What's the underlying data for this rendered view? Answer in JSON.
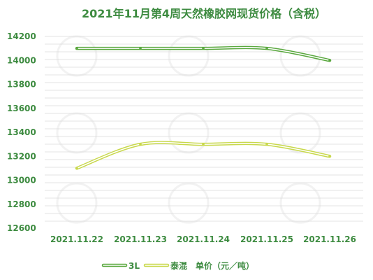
{
  "chart_data": {
    "type": "line",
    "title": "2021年11月第4周天然橡胶网现货价格（含税）",
    "categories": [
      "2021.11.22",
      "2021.11.23",
      "2021.11.24",
      "2021.11.25",
      "2021.11.26"
    ],
    "ylim": [
      12600,
      14200
    ],
    "yticks": [
      12600,
      12800,
      13000,
      13200,
      13400,
      13600,
      13800,
      14000,
      14200
    ],
    "grid": true,
    "legend_position": "bottom",
    "series": [
      {
        "name": "3L",
        "values": [
          14100,
          14100,
          14100,
          14100,
          14000
        ],
        "color": "#5aa83f"
      },
      {
        "name": "泰混",
        "values": [
          13100,
          13300,
          13300,
          13300,
          13200
        ],
        "color": "#c8d84b"
      }
    ],
    "legend_suffix": "单价（元／吨）"
  }
}
